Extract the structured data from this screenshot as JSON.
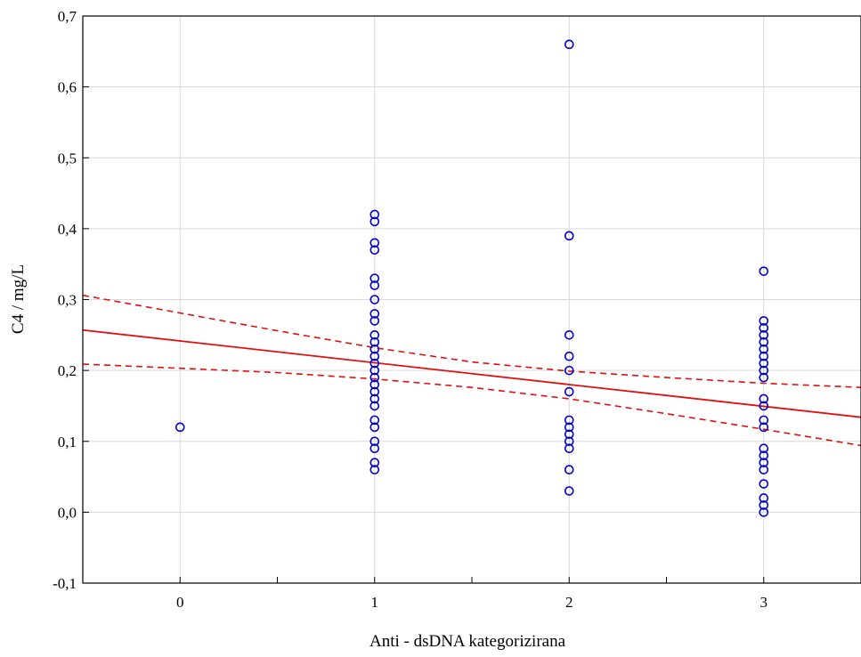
{
  "chart_data": {
    "type": "scatter",
    "title": "",
    "xlabel": "Anti - dsDNA kategorizirana",
    "ylabel": "C4 / mg/L",
    "xlim": [
      -0.5,
      3.5
    ],
    "ylim": [
      -0.1,
      0.7
    ],
    "x_ticks": [
      0,
      1,
      2,
      3
    ],
    "x_minor_ticks": [
      -0.5,
      0.5,
      1.5,
      2.5,
      3.5
    ],
    "x_tick_labels": [
      "0",
      "1",
      "2",
      "3"
    ],
    "y_ticks": [
      -0.1,
      0.0,
      0.1,
      0.2,
      0.3,
      0.4,
      0.5,
      0.6,
      0.7
    ],
    "y_tick_labels": [
      "-0,1",
      "0,0",
      "0,1",
      "0,2",
      "0,3",
      "0,4",
      "0,5",
      "0,6",
      "0,7"
    ],
    "grid": true,
    "series": [
      {
        "marker": "open-circle",
        "color": "#0000cc",
        "points": [
          [
            0,
            0.12
          ],
          [
            1,
            0.42
          ],
          [
            1,
            0.41
          ],
          [
            1,
            0.38
          ],
          [
            1,
            0.37
          ],
          [
            1,
            0.33
          ],
          [
            1,
            0.32
          ],
          [
            1,
            0.3
          ],
          [
            1,
            0.28
          ],
          [
            1,
            0.27
          ],
          [
            1,
            0.25
          ],
          [
            1,
            0.24
          ],
          [
            1,
            0.23
          ],
          [
            1,
            0.22
          ],
          [
            1,
            0.21
          ],
          [
            1,
            0.2
          ],
          [
            1,
            0.19
          ],
          [
            1,
            0.18
          ],
          [
            1,
            0.17
          ],
          [
            1,
            0.16
          ],
          [
            1,
            0.15
          ],
          [
            1,
            0.13
          ],
          [
            1,
            0.12
          ],
          [
            1,
            0.1
          ],
          [
            1,
            0.09
          ],
          [
            1,
            0.07
          ],
          [
            1,
            0.06
          ],
          [
            2,
            0.66
          ],
          [
            2,
            0.39
          ],
          [
            2,
            0.25
          ],
          [
            2,
            0.22
          ],
          [
            2,
            0.2
          ],
          [
            2,
            0.17
          ],
          [
            2,
            0.13
          ],
          [
            2,
            0.12
          ],
          [
            2,
            0.11
          ],
          [
            2,
            0.1
          ],
          [
            2,
            0.09
          ],
          [
            2,
            0.06
          ],
          [
            2,
            0.03
          ],
          [
            3,
            0.34
          ],
          [
            3,
            0.27
          ],
          [
            3,
            0.26
          ],
          [
            3,
            0.25
          ],
          [
            3,
            0.24
          ],
          [
            3,
            0.23
          ],
          [
            3,
            0.22
          ],
          [
            3,
            0.21
          ],
          [
            3,
            0.2
          ],
          [
            3,
            0.19
          ],
          [
            3,
            0.16
          ],
          [
            3,
            0.15
          ],
          [
            3,
            0.13
          ],
          [
            3,
            0.12
          ],
          [
            3,
            0.09
          ],
          [
            3,
            0.08
          ],
          [
            3,
            0.07
          ],
          [
            3,
            0.06
          ],
          [
            3,
            0.04
          ],
          [
            3,
            0.02
          ],
          [
            3,
            0.01
          ],
          [
            3,
            0.0
          ]
        ]
      }
    ],
    "regression_line": {
      "color": "#e01010",
      "style": "solid",
      "points": [
        [
          -0.5,
          0.257
        ],
        [
          3.5,
          0.134
        ]
      ]
    },
    "confidence_bands": [
      {
        "name": "upper",
        "color": "#e01010",
        "style": "dashed",
        "points": [
          [
            -0.5,
            0.306
          ],
          [
            0,
            0.281
          ],
          [
            0.5,
            0.256
          ],
          [
            1,
            0.232
          ],
          [
            1.5,
            0.212
          ],
          [
            2,
            0.199
          ],
          [
            2.5,
            0.19
          ],
          [
            3,
            0.182
          ],
          [
            3.5,
            0.176
          ]
        ]
      },
      {
        "name": "lower",
        "color": "#e01010",
        "style": "dashed",
        "points": [
          [
            -0.5,
            0.209
          ],
          [
            0,
            0.203
          ],
          [
            0.5,
            0.197
          ],
          [
            1,
            0.188
          ],
          [
            1.5,
            0.176
          ],
          [
            2,
            0.16
          ],
          [
            2.5,
            0.139
          ],
          [
            3,
            0.117
          ],
          [
            3.5,
            0.094
          ]
        ]
      }
    ]
  }
}
